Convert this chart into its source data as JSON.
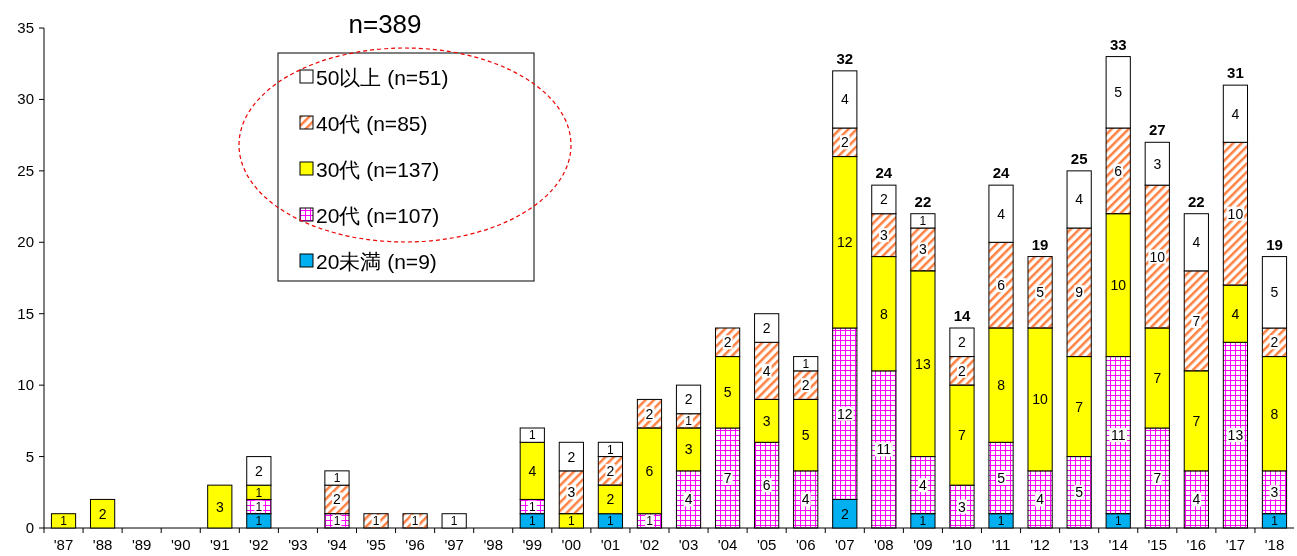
{
  "chart_data": {
    "type": "bar",
    "stacked": true,
    "categories": [
      "'87",
      "'88",
      "'89",
      "'90",
      "'91",
      "'92",
      "'93",
      "'94",
      "'95",
      "'96",
      "'97",
      "'98",
      "'99",
      "'00",
      "'01",
      "'02",
      "'03",
      "'04",
      "'05",
      "'06",
      "'07",
      "'08",
      "'09",
      "'10",
      "'11",
      "'12",
      "'13",
      "'14",
      "'15",
      "'16",
      "'17",
      "'18"
    ],
    "series": [
      {
        "name": "20未満 (n=9)",
        "color": "#00b0f0",
        "values": [
          null,
          null,
          null,
          null,
          null,
          1,
          null,
          null,
          null,
          null,
          null,
          null,
          1,
          null,
          1,
          null,
          null,
          null,
          null,
          null,
          2,
          null,
          1,
          null,
          1,
          null,
          null,
          1,
          null,
          null,
          null,
          1
        ]
      },
      {
        "name": "20代 (n=107)",
        "color": "#ff00ff",
        "values": [
          null,
          null,
          null,
          null,
          null,
          1,
          null,
          1,
          null,
          null,
          null,
          null,
          1,
          null,
          null,
          1,
          4,
          7,
          6,
          4,
          12,
          11,
          4,
          3,
          5,
          4,
          5,
          11,
          7,
          4,
          13,
          3
        ]
      },
      {
        "name": "30代 (n=137)",
        "color": "#ffff00",
        "values": [
          1,
          2,
          null,
          null,
          3,
          1,
          null,
          null,
          null,
          null,
          null,
          null,
          4,
          1,
          2,
          6,
          3,
          5,
          3,
          5,
          12,
          8,
          13,
          7,
          8,
          10,
          7,
          10,
          7,
          7,
          4,
          8
        ]
      },
      {
        "name": "40代 (n=85)",
        "color": "#ff8040",
        "values": [
          null,
          null,
          null,
          null,
          null,
          null,
          null,
          2,
          1,
          1,
          null,
          null,
          null,
          3,
          2,
          2,
          1,
          2,
          4,
          2,
          2,
          3,
          3,
          2,
          6,
          5,
          9,
          6,
          10,
          7,
          10,
          2
        ]
      },
      {
        "name": "50以上 (n=51)",
        "color": "#ffffff",
        "values": [
          null,
          null,
          null,
          null,
          null,
          2,
          null,
          1,
          null,
          null,
          1,
          null,
          1,
          2,
          1,
          null,
          2,
          null,
          2,
          1,
          4,
          2,
          1,
          2,
          4,
          null,
          4,
          5,
          3,
          4,
          4,
          5
        ]
      }
    ],
    "totals": [
      null,
      null,
      null,
      null,
      null,
      null,
      null,
      null,
      null,
      null,
      null,
      null,
      null,
      null,
      null,
      null,
      null,
      null,
      null,
      null,
      "32",
      "24",
      "22",
      "14",
      "24",
      "19",
      "25",
      "33",
      "27",
      "22",
      "31",
      "19"
    ],
    "data_labels": true,
    "ylim": [
      0,
      35
    ],
    "yticks": [
      0,
      5,
      10,
      15,
      20,
      25,
      30,
      35
    ],
    "grid": false,
    "legend": "top left",
    "annotations": [
      "n=389"
    ]
  }
}
